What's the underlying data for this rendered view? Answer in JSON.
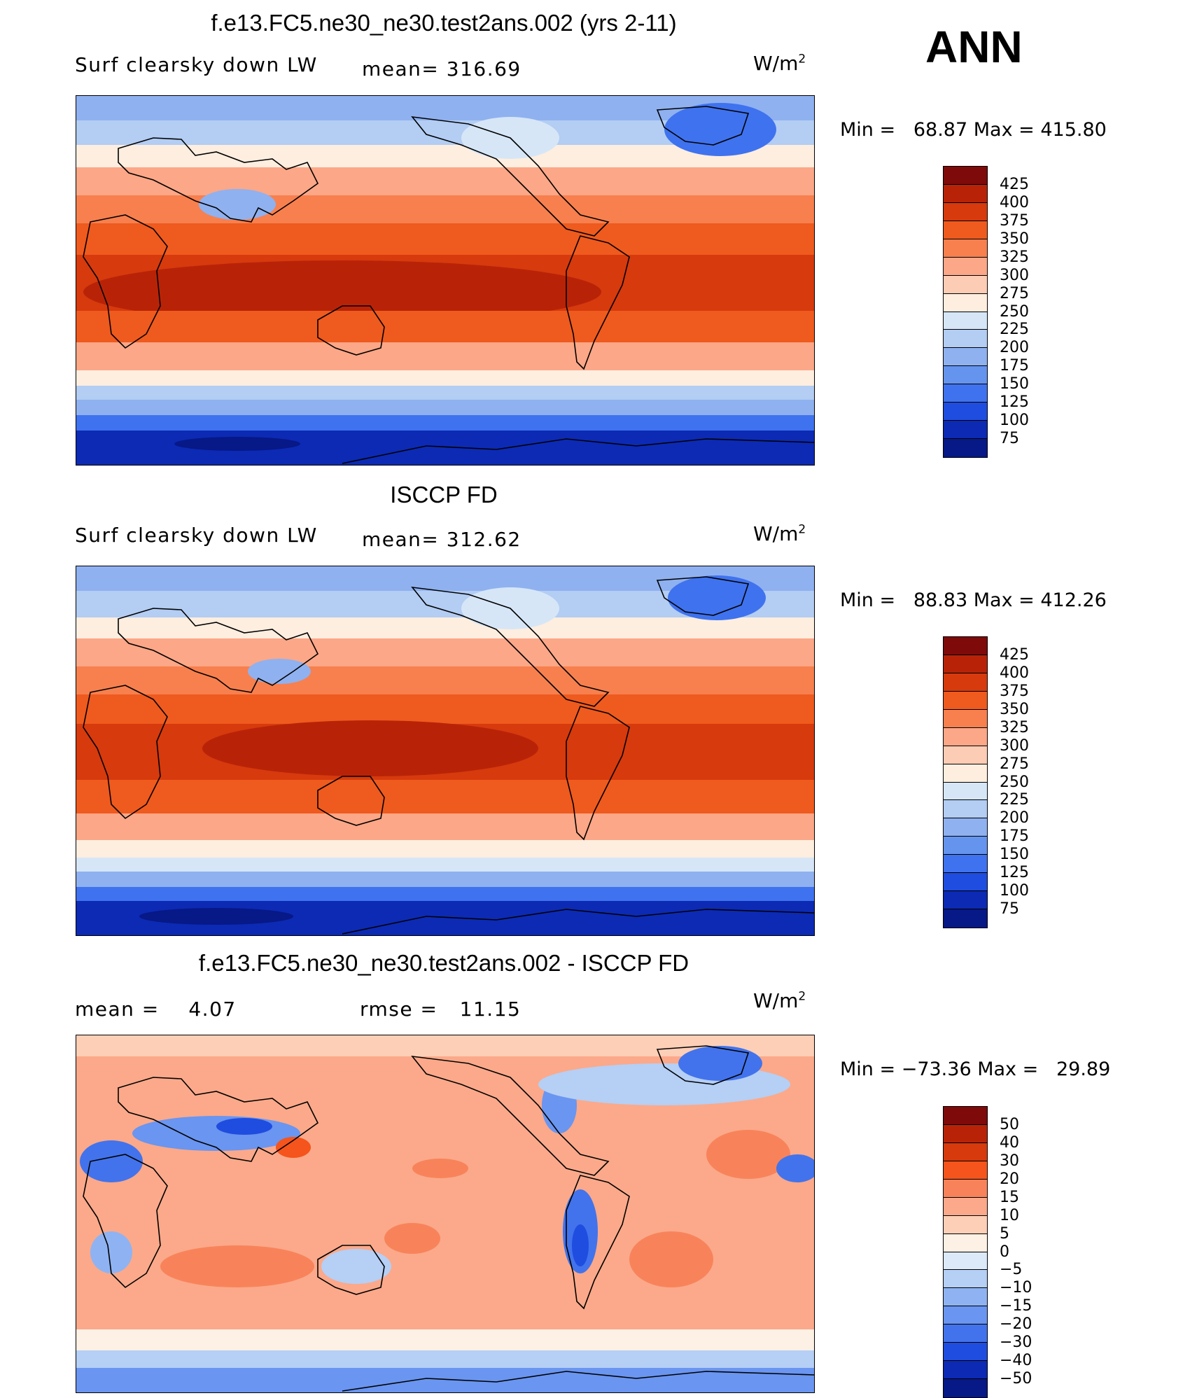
{
  "season": "ANN",
  "panels": [
    {
      "id": "model",
      "title": "f.e13.FC5.ne30_ne30.test2ans.002 (yrs 2-11)",
      "variable": "Surf clearsky down LW",
      "stat_left": "",
      "mean_text": "mean= 316.69",
      "units_base": "W/m",
      "units_exp": "2",
      "minmax": "Min =   68.87 Max = 415.80",
      "colorbar": {
        "labels": [
          "425",
          "400",
          "375",
          "350",
          "325",
          "300",
          "275",
          "250",
          "225",
          "200",
          "175",
          "150",
          "125",
          "100",
          "75"
        ],
        "colors": [
          "#7f0a0a",
          "#b82308",
          "#d63a0d",
          "#ef5a1e",
          "#f7804e",
          "#fca787",
          "#fdccb5",
          "#fdeedf",
          "#d6e6f7",
          "#b3cdf3",
          "#8fb1f0",
          "#6594ef",
          "#3f72ee",
          "#1f4de0",
          "#0c2ab4",
          "#071887"
        ]
      }
    },
    {
      "id": "obs",
      "title": "ISCCP FD",
      "variable": "Surf clearsky down LW",
      "stat_left": "",
      "mean_text": "mean= 312.62",
      "units_base": "W/m",
      "units_exp": "2",
      "minmax": "Min =   88.83 Max = 412.26",
      "colorbar": {
        "labels": [
          "425",
          "400",
          "375",
          "350",
          "325",
          "300",
          "275",
          "250",
          "225",
          "200",
          "175",
          "150",
          "125",
          "100",
          "75"
        ],
        "colors": [
          "#7f0a0a",
          "#b82308",
          "#d63a0d",
          "#ef5a1e",
          "#f7804e",
          "#fca787",
          "#fdccb5",
          "#fdeedf",
          "#d6e6f7",
          "#b3cdf3",
          "#8fb1f0",
          "#6594ef",
          "#3f72ee",
          "#1f4de0",
          "#0c2ab4",
          "#071887"
        ]
      }
    },
    {
      "id": "diff",
      "title": "f.e13.FC5.ne30_ne30.test2ans.002 - ISCCP FD",
      "variable": "",
      "stat_left": "mean =    4.07",
      "mean_text": "rmse =   11.15",
      "units_base": "W/m",
      "units_exp": "2",
      "minmax": "Min = −73.36 Max =   29.89",
      "colorbar": {
        "labels": [
          "50",
          "40",
          "30",
          "20",
          "15",
          "10",
          "5",
          "0",
          "−5",
          "−10",
          "−15",
          "−20",
          "−30",
          "−40",
          "−50"
        ],
        "colors": [
          "#7f0a0a",
          "#b82308",
          "#d63a0d",
          "#f5541c",
          "#f8835a",
          "#fba98a",
          "#fdcfb7",
          "#fdf0e4",
          "#dbe9f9",
          "#b5cff5",
          "#8fb3f2",
          "#6a95f0",
          "#4273ec",
          "#1f4de0",
          "#0c2ab4",
          "#071887"
        ]
      }
    }
  ],
  "chart_data": [
    {
      "type": "heatmap",
      "title": "f.e13.FC5.ne30_ne30.test2ans.002 (yrs 2-11)",
      "variable": "Surf clearsky down LW",
      "units": "W/m2",
      "mean": 316.69,
      "min": 68.87,
      "max": 415.8,
      "levels": [
        75,
        100,
        125,
        150,
        175,
        200,
        225,
        250,
        275,
        300,
        325,
        350,
        375,
        400,
        425
      ]
    },
    {
      "type": "heatmap",
      "title": "ISCCP FD",
      "variable": "Surf clearsky down LW",
      "units": "W/m2",
      "mean": 312.62,
      "min": 88.83,
      "max": 412.26,
      "levels": [
        75,
        100,
        125,
        150,
        175,
        200,
        225,
        250,
        275,
        300,
        325,
        350,
        375,
        400,
        425
      ]
    },
    {
      "type": "heatmap",
      "title": "f.e13.FC5.ne30_ne30.test2ans.002 - ISCCP FD",
      "units": "W/m2",
      "mean": 4.07,
      "rmse": 11.15,
      "min": -73.36,
      "max": 29.89,
      "levels": [
        -50,
        -40,
        -30,
        -20,
        -15,
        -10,
        -5,
        0,
        5,
        10,
        15,
        20,
        30,
        40,
        50
      ]
    }
  ]
}
